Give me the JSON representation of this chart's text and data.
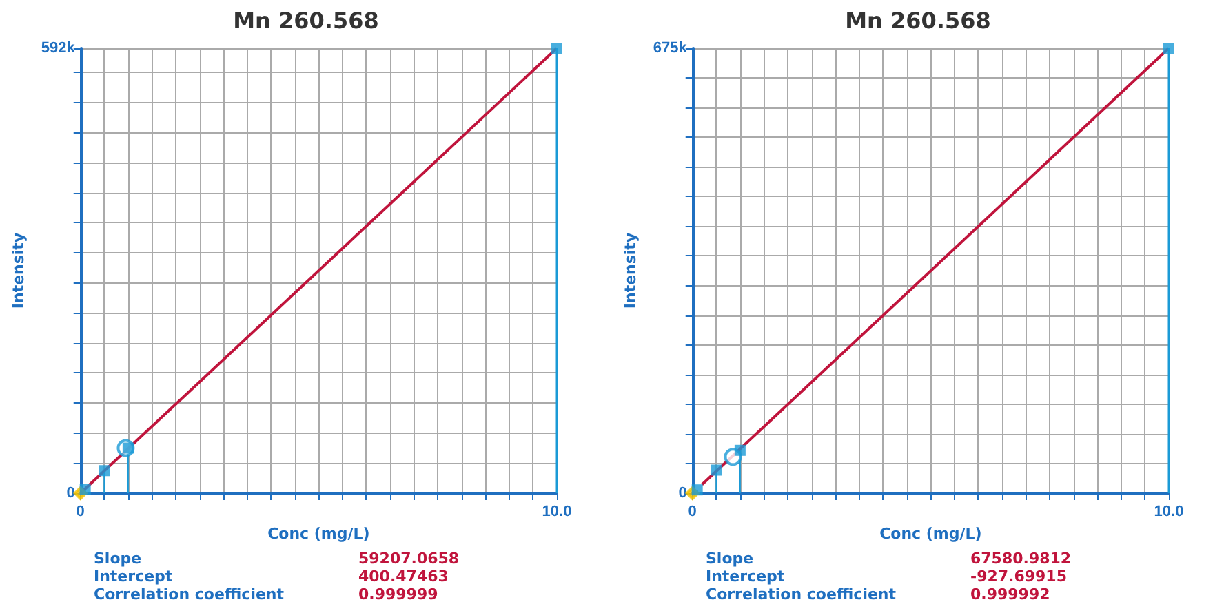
{
  "chart_data": [
    {
      "type": "scatter",
      "title": "Mn 260.568",
      "xlabel": "Conc (mg/L)",
      "ylabel": "Intensity",
      "xlim": [
        0,
        10
      ],
      "ylim": [
        0,
        592000
      ],
      "xticks": [
        {
          "value": 0,
          "label": "0"
        },
        {
          "value": 0.5,
          "label": null
        },
        {
          "value": 1,
          "label": null
        },
        {
          "value": 1.5,
          "label": null
        },
        {
          "value": 2,
          "label": null
        },
        {
          "value": 2.5,
          "label": null
        },
        {
          "value": 3,
          "label": null
        },
        {
          "value": 3.5,
          "label": null
        },
        {
          "value": 4,
          "label": null
        },
        {
          "value": 4.5,
          "label": null
        },
        {
          "value": 5,
          "label": null
        },
        {
          "value": 5.5,
          "label": null
        },
        {
          "value": 6,
          "label": null
        },
        {
          "value": 6.5,
          "label": null
        },
        {
          "value": 7,
          "label": null
        },
        {
          "value": 7.5,
          "label": null
        },
        {
          "value": 8,
          "label": null
        },
        {
          "value": 8.5,
          "label": null
        },
        {
          "value": 9,
          "label": null
        },
        {
          "value": 9.5,
          "label": null
        },
        {
          "value": 10,
          "label": "10.0"
        }
      ],
      "yticks": [
        {
          "value": 0,
          "label": "0"
        },
        {
          "value": 40000,
          "label": null
        },
        {
          "value": 80000,
          "label": null
        },
        {
          "value": 120000,
          "label": null
        },
        {
          "value": 160000,
          "label": null
        },
        {
          "value": 200000,
          "label": null
        },
        {
          "value": 240000,
          "label": null
        },
        {
          "value": 280000,
          "label": null
        },
        {
          "value": 320000,
          "label": null
        },
        {
          "value": 360000,
          "label": null
        },
        {
          "value": 400000,
          "label": null
        },
        {
          "value": 440000,
          "label": null
        },
        {
          "value": 480000,
          "label": null
        },
        {
          "value": 520000,
          "label": null
        },
        {
          "value": 560000,
          "label": null
        },
        {
          "value": 592000,
          "label": "592k"
        }
      ],
      "grid": true,
      "series": [
        {
          "type": "line",
          "color": "#c0143c",
          "x": [
            0,
            10
          ],
          "values": [
            0,
            592000
          ],
          "marker": "none"
        },
        {
          "type": "lollipop",
          "color": "#1a9ad6",
          "x": [
            0.1,
            0.5,
            1,
            10
          ],
          "values": [
            5000,
            30000,
            60000,
            592000
          ],
          "marker": "square"
        },
        {
          "color": "#1a9ad6",
          "x": [
            0.95
          ],
          "values": [
            60000
          ],
          "marker": "circle"
        },
        {
          "color": "#f2c200",
          "x": [
            0
          ],
          "values": [
            0
          ],
          "marker": "diamond"
        }
      ],
      "annotations": [
        "Slope",
        "Intercept",
        "Correlation coefficient",
        "59207.0658",
        "400.47463",
        "0.999999"
      ]
    },
    {
      "type": "scatter",
      "title": "Mn 260.568",
      "xlabel": "Conc (mg/L)",
      "ylabel": "Intensity",
      "xlim": [
        0,
        10
      ],
      "ylim": [
        0,
        675000
      ],
      "xticks": [
        {
          "value": 0,
          "label": "0"
        },
        {
          "value": 0.5,
          "label": null
        },
        {
          "value": 1,
          "label": null
        },
        {
          "value": 1.5,
          "label": null
        },
        {
          "value": 2,
          "label": null
        },
        {
          "value": 2.5,
          "label": null
        },
        {
          "value": 3,
          "label": null
        },
        {
          "value": 3.5,
          "label": null
        },
        {
          "value": 4,
          "label": null
        },
        {
          "value": 4.5,
          "label": null
        },
        {
          "value": 5,
          "label": null
        },
        {
          "value": 5.5,
          "label": null
        },
        {
          "value": 6,
          "label": null
        },
        {
          "value": 6.5,
          "label": null
        },
        {
          "value": 7,
          "label": null
        },
        {
          "value": 7.5,
          "label": null
        },
        {
          "value": 8,
          "label": null
        },
        {
          "value": 8.5,
          "label": null
        },
        {
          "value": 9,
          "label": null
        },
        {
          "value": 9.5,
          "label": null
        },
        {
          "value": 10,
          "label": "10.0"
        }
      ],
      "yticks": [
        {
          "value": 0,
          "label": "0"
        },
        {
          "value": 45000,
          "label": null
        },
        {
          "value": 90000,
          "label": null
        },
        {
          "value": 135000,
          "label": null
        },
        {
          "value": 180000,
          "label": null
        },
        {
          "value": 225000,
          "label": null
        },
        {
          "value": 270000,
          "label": null
        },
        {
          "value": 315000,
          "label": null
        },
        {
          "value": 360000,
          "label": null
        },
        {
          "value": 405000,
          "label": null
        },
        {
          "value": 450000,
          "label": null
        },
        {
          "value": 495000,
          "label": null
        },
        {
          "value": 540000,
          "label": null
        },
        {
          "value": 585000,
          "label": null
        },
        {
          "value": 630000,
          "label": null
        },
        {
          "value": 675000,
          "label": "675k"
        }
      ],
      "grid": true,
      "series": [
        {
          "type": "line",
          "color": "#c0143c",
          "x": [
            0.2,
            10
          ],
          "values": [
            13000,
            675000
          ],
          "marker": "none"
        },
        {
          "type": "lollipop",
          "color": "#1a9ad6",
          "x": [
            0.1,
            0.5,
            1,
            10
          ],
          "values": [
            5000,
            35000,
            65000,
            675000
          ],
          "marker": "square"
        },
        {
          "color": "#1a9ad6",
          "x": [
            0.85
          ],
          "values": [
            55000
          ],
          "marker": "circle"
        },
        {
          "color": "#f2c200",
          "x": [
            0
          ],
          "values": [
            0
          ],
          "marker": "diamond"
        }
      ],
      "annotations": [
        "Slope",
        "Intercept",
        "Correlation coefficient",
        "67580.9812",
        "-927.69915",
        "0.999992"
      ]
    }
  ]
}
